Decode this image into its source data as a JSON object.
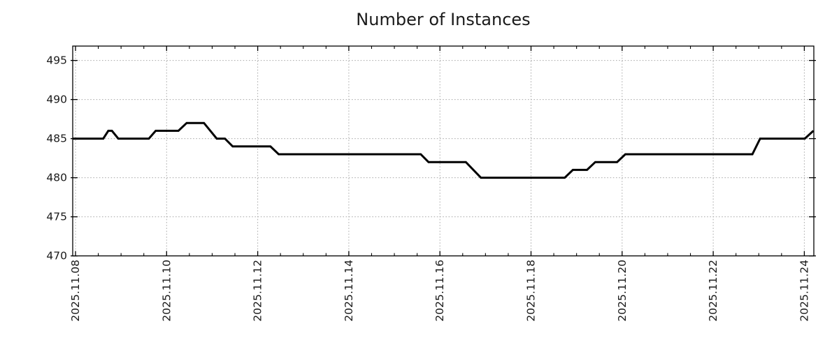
{
  "colors": {
    "background": "#ffffff",
    "axis": "#000000",
    "grid": "#aaaaaa",
    "text": "#1a1a1a",
    "line": "#000000"
  },
  "chart_data": {
    "type": "line",
    "title": "Number of Instances",
    "xlabel": "",
    "ylabel": "",
    "legend": "none",
    "grid": "dotted",
    "x_axis": {
      "unit": "date",
      "range_days": [
        -0.06,
        16.2
      ],
      "minor_tick_step_days": 0.5,
      "major_ticks": [
        {
          "day": 0,
          "label": "2025.11.08"
        },
        {
          "day": 2,
          "label": "2025.11.10"
        },
        {
          "day": 4,
          "label": "2025.11.12"
        },
        {
          "day": 6,
          "label": "2025.11.14"
        },
        {
          "day": 8,
          "label": "2025.11.16"
        },
        {
          "day": 10,
          "label": "2025.11.18"
        },
        {
          "day": 12,
          "label": "2025.11.20"
        },
        {
          "day": 14,
          "label": "2025.11.22"
        },
        {
          "day": 16,
          "label": "2025.11.24"
        }
      ]
    },
    "y_axis": {
      "ticks": [
        470,
        475,
        480,
        485,
        490,
        495
      ],
      "range": [
        470,
        496.8
      ]
    },
    "series": [
      {
        "name": "instances",
        "color": "#000000",
        "line_width": 3,
        "points": [
          [
            -0.06,
            485
          ],
          [
            0.61,
            485
          ],
          [
            0.72,
            486
          ],
          [
            0.8,
            486
          ],
          [
            0.94,
            485
          ],
          [
            1.61,
            485
          ],
          [
            1.76,
            486
          ],
          [
            2.26,
            486
          ],
          [
            2.44,
            487
          ],
          [
            2.82,
            487
          ],
          [
            3.1,
            485
          ],
          [
            3.28,
            485
          ],
          [
            3.45,
            484
          ],
          [
            4.28,
            484
          ],
          [
            4.46,
            483
          ],
          [
            7.58,
            483
          ],
          [
            7.75,
            482
          ],
          [
            8.57,
            482
          ],
          [
            8.9,
            480
          ],
          [
            10.74,
            480
          ],
          [
            10.92,
            481
          ],
          [
            11.23,
            481
          ],
          [
            11.41,
            482
          ],
          [
            11.89,
            482
          ],
          [
            12.07,
            483
          ],
          [
            14.86,
            483
          ],
          [
            15.03,
            485
          ],
          [
            16.01,
            485
          ],
          [
            16.2,
            486
          ]
        ]
      }
    ]
  }
}
